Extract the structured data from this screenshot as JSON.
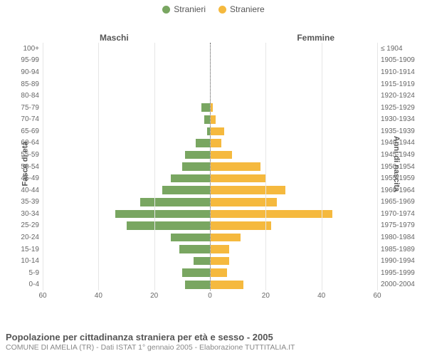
{
  "legend": {
    "male": {
      "label": "Stranieri",
      "color": "#79a661"
    },
    "female": {
      "label": "Straniere",
      "color": "#f5b93e"
    }
  },
  "headers": {
    "male": "Maschi",
    "female": "Femmine"
  },
  "y_axis_left_label": "Fasce di età",
  "y_axis_right_label": "Anni di nascita",
  "x_axis": {
    "max": 60,
    "ticks": [
      60,
      40,
      20,
      0,
      20,
      40,
      60
    ]
  },
  "grid_color": "#e6e6e6",
  "center_line_color": "#666666",
  "background_color": "#ffffff",
  "bar_colors": {
    "male": "#79a661",
    "female": "#f5b93e"
  },
  "rows": [
    {
      "age": "100+",
      "birth": "≤ 1904",
      "m": 0,
      "f": 0
    },
    {
      "age": "95-99",
      "birth": "1905-1909",
      "m": 0,
      "f": 0
    },
    {
      "age": "90-94",
      "birth": "1910-1914",
      "m": 0,
      "f": 0
    },
    {
      "age": "85-89",
      "birth": "1915-1919",
      "m": 0,
      "f": 0
    },
    {
      "age": "80-84",
      "birth": "1920-1924",
      "m": 0,
      "f": 0
    },
    {
      "age": "75-79",
      "birth": "1925-1929",
      "m": 3,
      "f": 1
    },
    {
      "age": "70-74",
      "birth": "1930-1934",
      "m": 2,
      "f": 2
    },
    {
      "age": "65-69",
      "birth": "1935-1939",
      "m": 1,
      "f": 5
    },
    {
      "age": "60-64",
      "birth": "1940-1944",
      "m": 5,
      "f": 4
    },
    {
      "age": "55-59",
      "birth": "1945-1949",
      "m": 9,
      "f": 8
    },
    {
      "age": "50-54",
      "birth": "1950-1954",
      "m": 10,
      "f": 18
    },
    {
      "age": "45-49",
      "birth": "1955-1959",
      "m": 14,
      "f": 20
    },
    {
      "age": "40-44",
      "birth": "1960-1964",
      "m": 17,
      "f": 27
    },
    {
      "age": "35-39",
      "birth": "1965-1969",
      "m": 25,
      "f": 24
    },
    {
      "age": "30-34",
      "birth": "1970-1974",
      "m": 34,
      "f": 44
    },
    {
      "age": "25-29",
      "birth": "1975-1979",
      "m": 30,
      "f": 22
    },
    {
      "age": "20-24",
      "birth": "1980-1984",
      "m": 14,
      "f": 11
    },
    {
      "age": "15-19",
      "birth": "1985-1989",
      "m": 11,
      "f": 7
    },
    {
      "age": "10-14",
      "birth": "1990-1994",
      "m": 6,
      "f": 7
    },
    {
      "age": "5-9",
      "birth": "1995-1999",
      "m": 10,
      "f": 6
    },
    {
      "age": "0-4",
      "birth": "2000-2004",
      "m": 9,
      "f": 12
    }
  ],
  "footer": {
    "title": "Popolazione per cittadinanza straniera per età e sesso - 2005",
    "subtitle": "COMUNE DI AMELIA (TR) - Dati ISTAT 1° gennaio 2005 - Elaborazione TUTTITALIA.IT"
  }
}
